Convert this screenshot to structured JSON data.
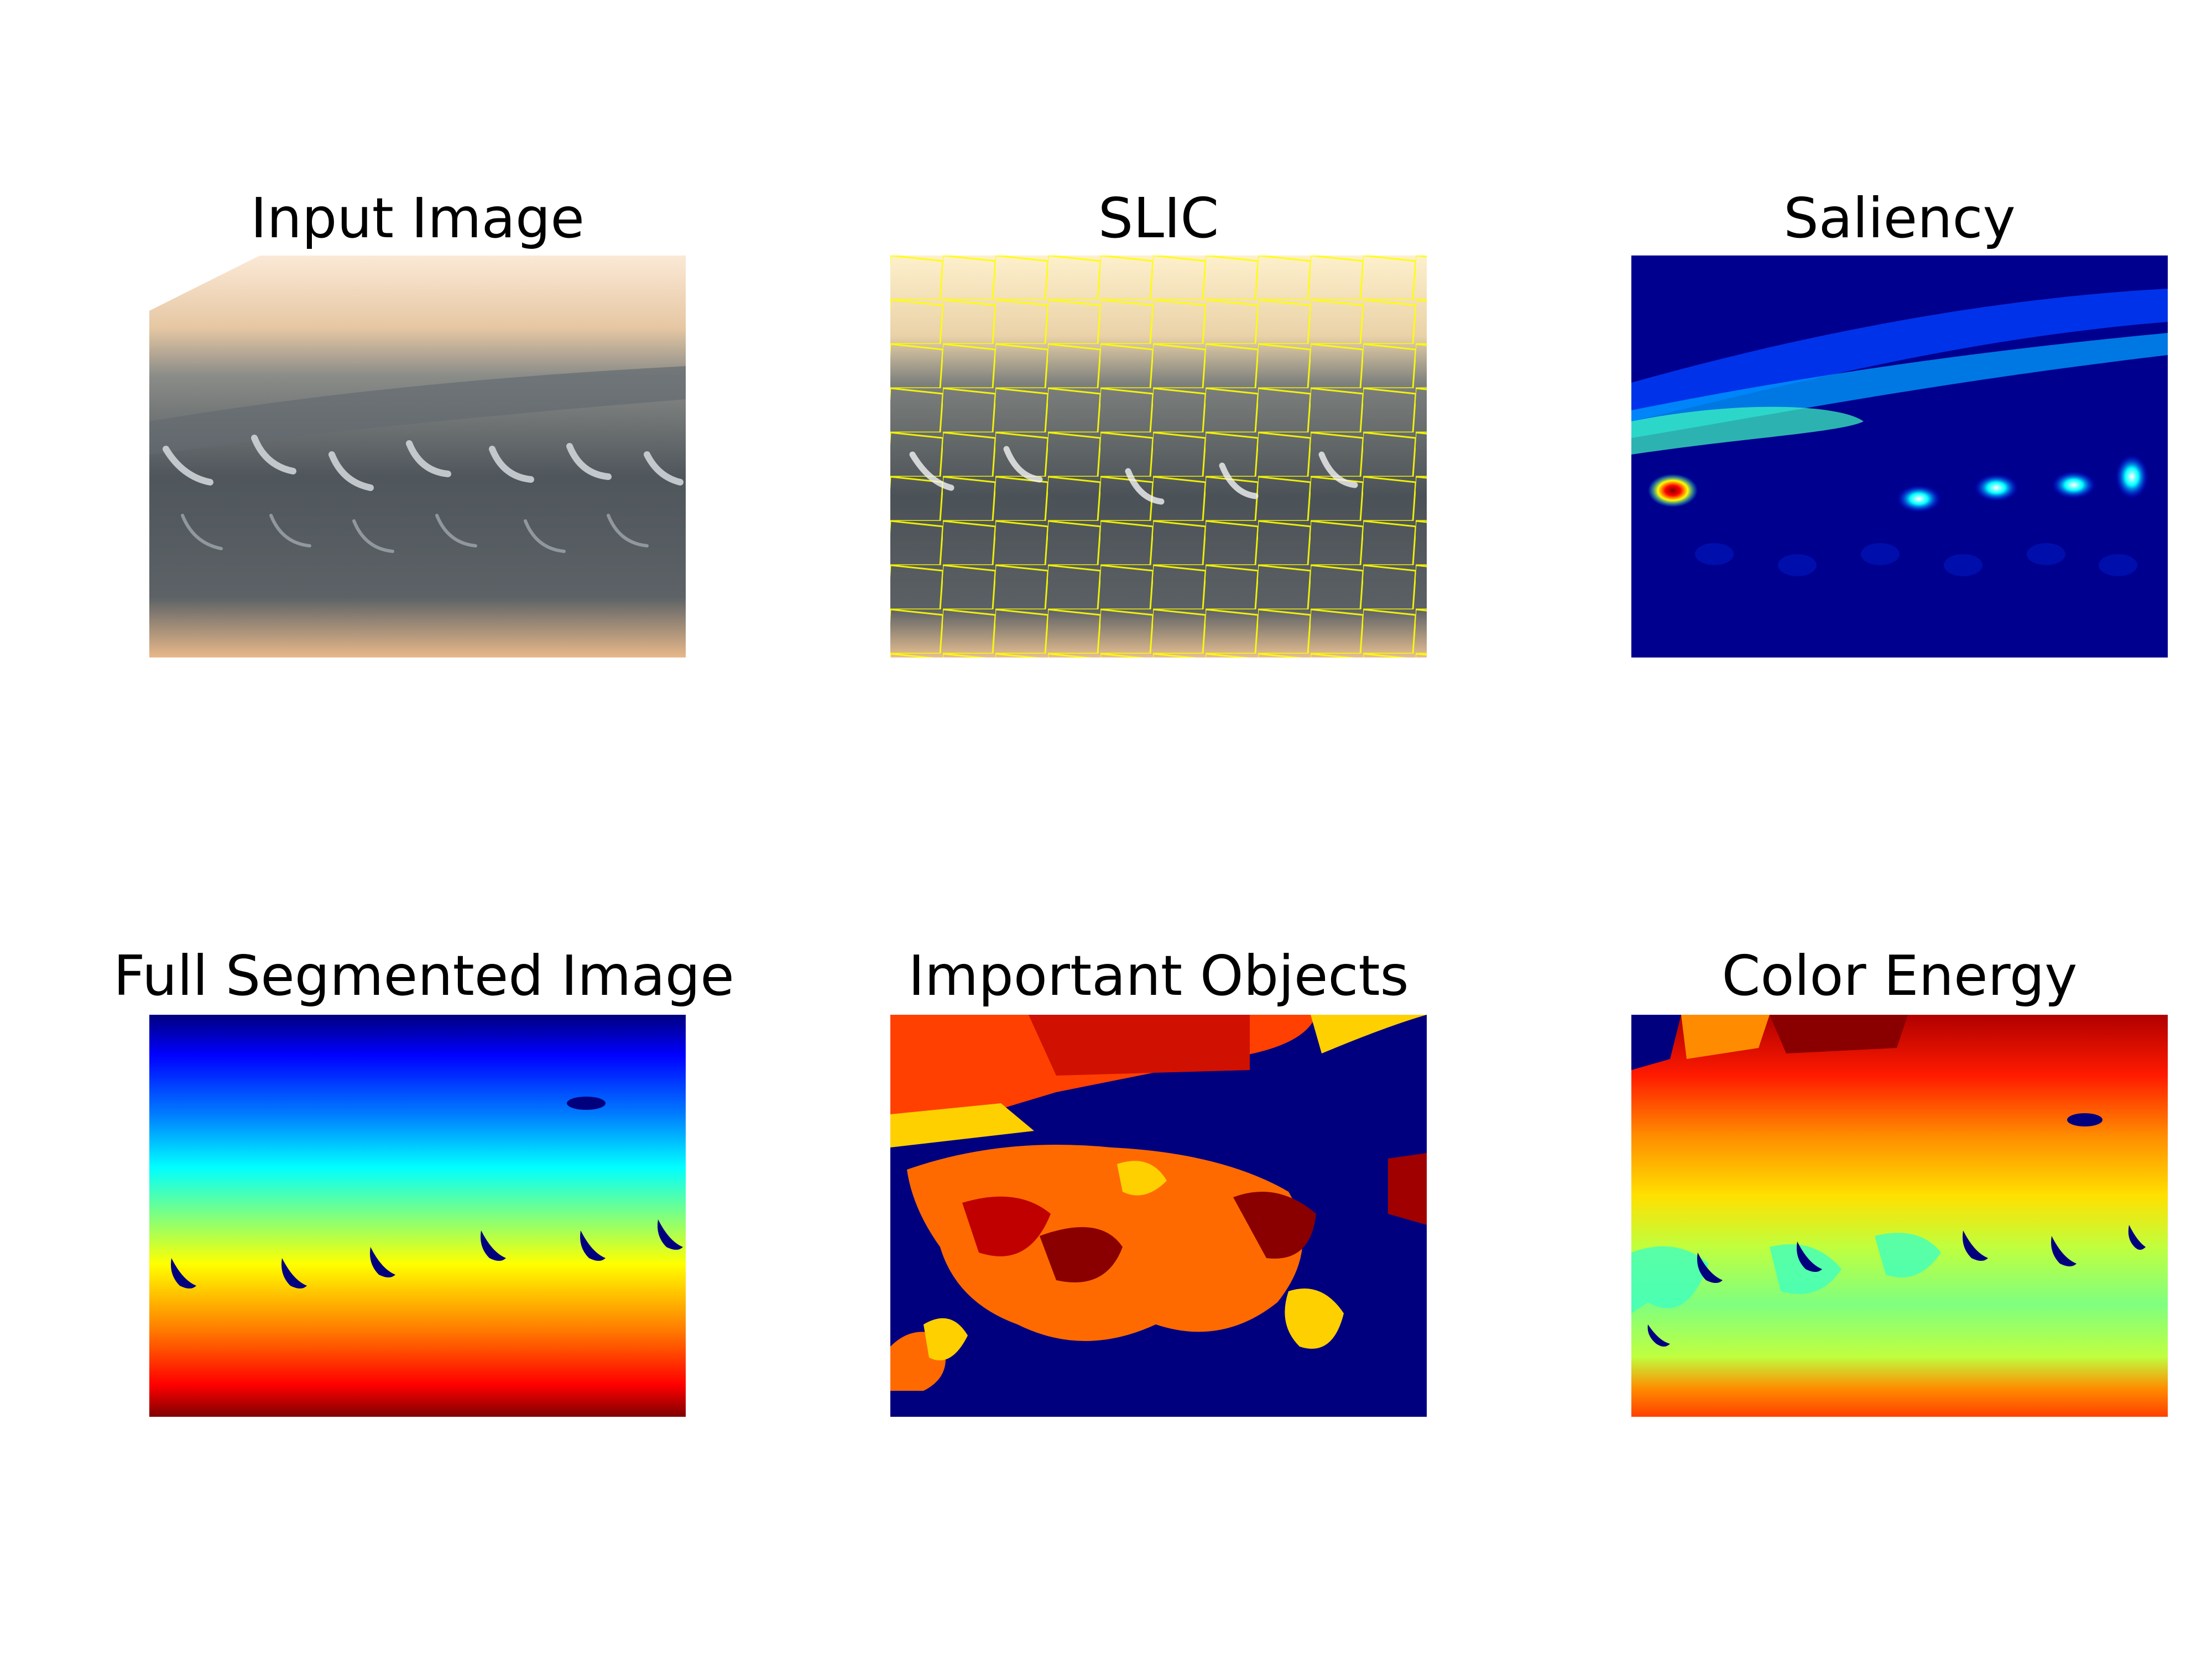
{
  "panels": [
    {
      "title": "Input Image"
    },
    {
      "title": "SLIC"
    },
    {
      "title": "Saliency"
    },
    {
      "title": "Full Segmented Image"
    },
    {
      "title": "Important Objects"
    },
    {
      "title": "Color Energy"
    }
  ],
  "colors": {
    "background": "#ffffff",
    "slic_boundary": "#ffff00",
    "jet_dark_blue": "#00007f",
    "jet_blue": "#0000ff",
    "jet_cyan": "#00ffff",
    "jet_green": "#7fff7f",
    "jet_yellow": "#ffff00",
    "jet_orange": "#ff7f00",
    "jet_red": "#ff0000",
    "jet_dark_red": "#7f0000"
  }
}
